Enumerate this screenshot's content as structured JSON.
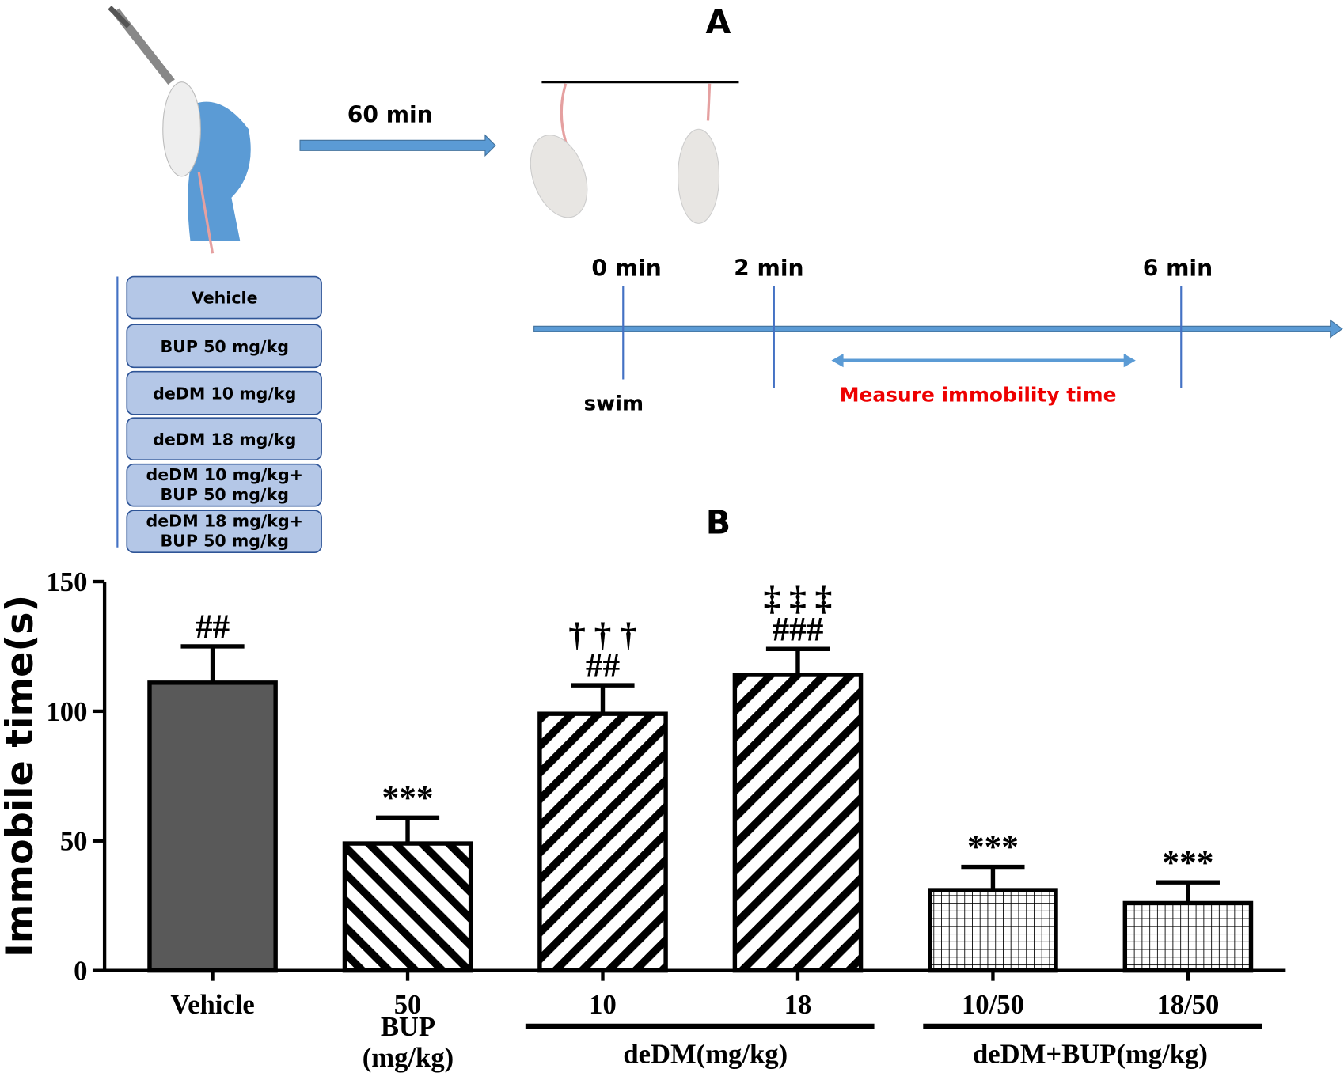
{
  "panel_a": {
    "title": "A",
    "delay": "60 min",
    "timeline": [
      "0 min",
      "2 min",
      "6 min"
    ],
    "start_label": "swim",
    "measure_label": "Measure immobility time",
    "groups": [
      [
        "Vehicle"
      ],
      [
        "BUP 50 mg/kg"
      ],
      [
        "deDM 10 mg/kg"
      ],
      [
        "deDM 18 mg/kg"
      ],
      [
        "deDM 10 mg/kg+",
        "BUP 50 mg/kg"
      ],
      [
        "deDM 18 mg/kg+",
        "BUP 50 mg/kg"
      ]
    ]
  },
  "chart_data": {
    "type": "bar",
    "title": "B",
    "y_label": "Immobile time(s)",
    "categories": [
      "Vehicle",
      "50",
      "10",
      "18",
      "10/50",
      "18/50"
    ],
    "values": [
      111,
      49,
      99,
      114,
      31,
      26
    ],
    "errors": [
      14,
      10,
      11,
      10,
      9,
      8
    ],
    "annotations": [
      [
        "##"
      ],
      [
        "***"
      ],
      [
        "##",
        "† † †"
      ],
      [
        "###",
        "‡ ‡ ‡"
      ],
      [
        "***"
      ],
      [
        "***"
      ]
    ],
    "fill_patterns": [
      "solid",
      "back-diagonal",
      "diagonal",
      "diagonal",
      "grid",
      "grid"
    ],
    "color": "#595959",
    "group_labels": [
      [
        "BUP",
        "(mg/kg)"
      ],
      [
        "deDM(mg/kg)"
      ],
      [
        "deDM+BUP(mg/kg)"
      ]
    ],
    "ylim": [
      0,
      150
    ],
    "yticks": [
      0,
      50,
      100,
      150
    ]
  }
}
